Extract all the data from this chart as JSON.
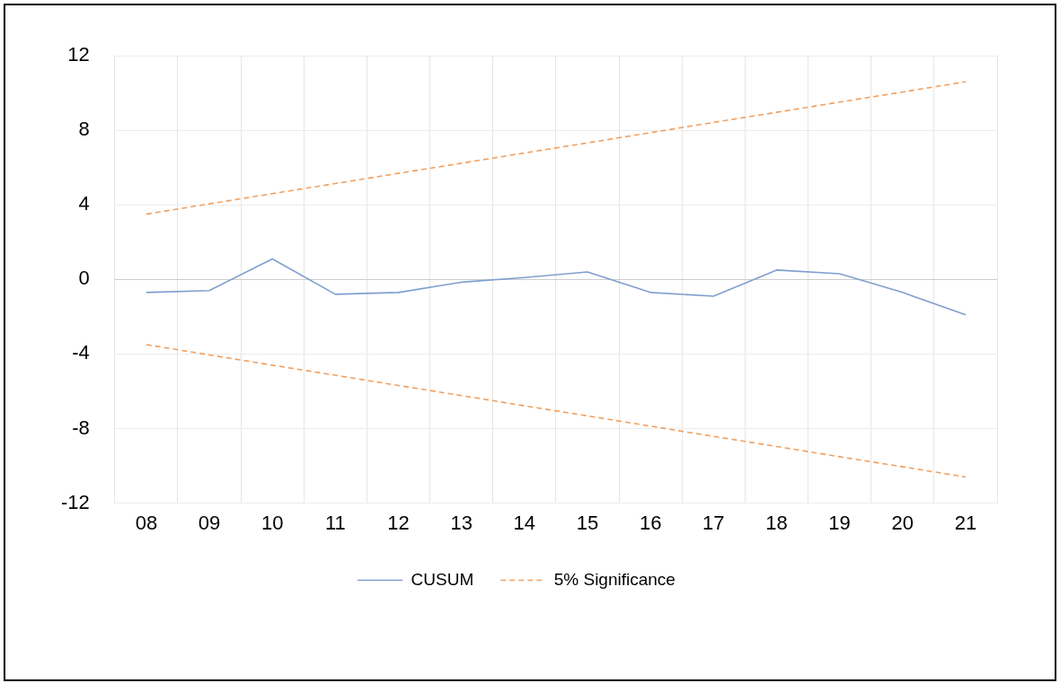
{
  "chart_data": {
    "type": "line",
    "categories": [
      "08",
      "09",
      "10",
      "11",
      "12",
      "13",
      "14",
      "15",
      "16",
      "17",
      "18",
      "19",
      "20",
      "21"
    ],
    "series": [
      {
        "name": "CUSUM",
        "color": "#7f9fcf",
        "line_style": "solid",
        "values": [
          -0.7,
          -0.6,
          1.1,
          -0.8,
          -0.7,
          -0.15,
          0.1,
          0.4,
          -0.7,
          -0.9,
          0.5,
          0.3,
          -0.7,
          -1.9
        ]
      },
      {
        "name": "5% Significance",
        "color": "#f0a060",
        "line_style": "dashed",
        "values": [
          3.5,
          4.05,
          4.6,
          5.14,
          5.69,
          6.23,
          6.78,
          7.32,
          7.87,
          8.42,
          8.96,
          9.51,
          10.05,
          10.6
        ]
      },
      {
        "color": "#f0a060",
        "line_style": "dashed",
        "values": [
          -3.5,
          -4.05,
          -4.6,
          -5.14,
          -5.69,
          -6.23,
          -6.78,
          -7.32,
          -7.87,
          -8.42,
          -8.96,
          -9.51,
          -10.05,
          -10.6
        ]
      }
    ],
    "ylim": [
      -12,
      12
    ],
    "yticks": [
      -12,
      -8,
      -4,
      0,
      4,
      8,
      12
    ],
    "grid": true,
    "legend": "bottom",
    "marker": "none"
  }
}
